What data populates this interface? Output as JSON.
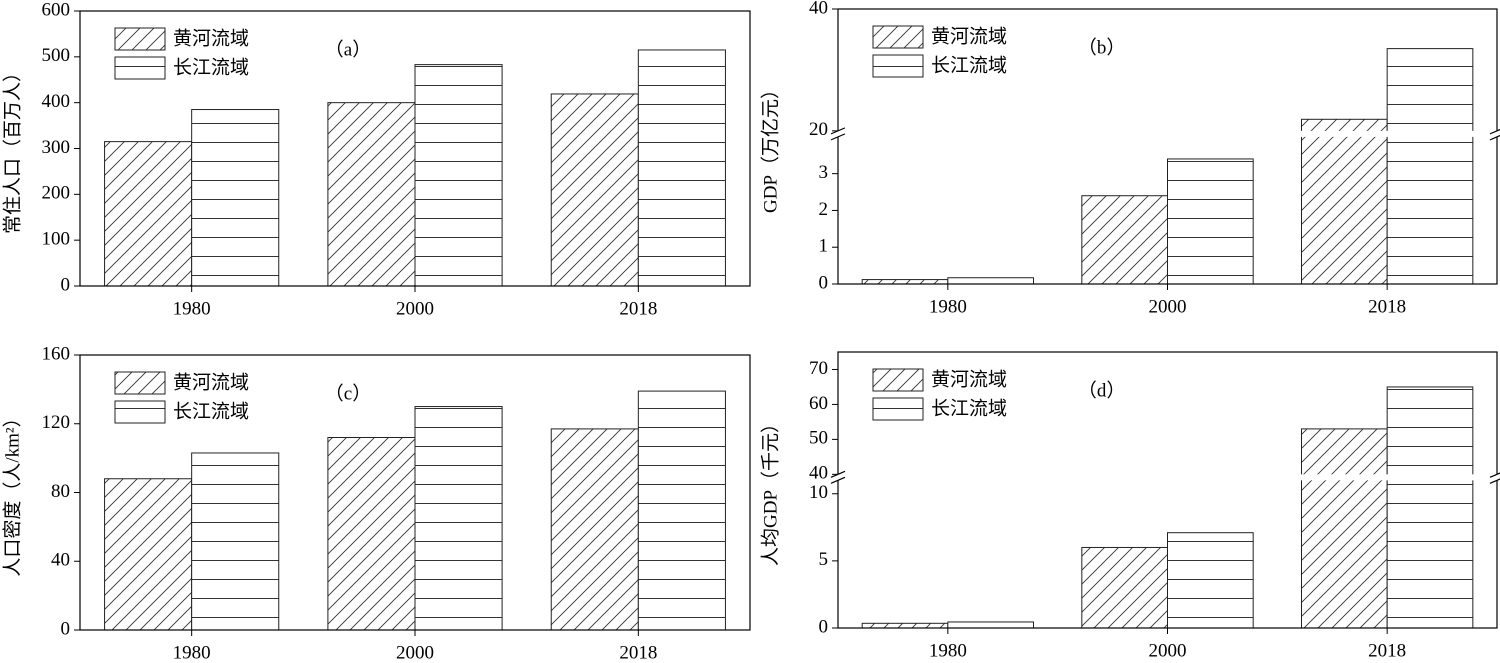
{
  "chart_data": [
    {
      "type": "bar",
      "annotation": "（a）",
      "y_label": "常住人口（百万人）",
      "categories": [
        "1980",
        "2000",
        "2018"
      ],
      "series": [
        {
          "name": "黄河流域",
          "color": "#ffffff",
          "hatch": "diagonal",
          "values": [
            315,
            400,
            419
          ]
        },
        {
          "name": "长江流域",
          "color": "#ffffff",
          "hatch": "horizontal",
          "values": [
            385,
            483,
            515
          ]
        }
      ],
      "ylim": [
        0,
        600
      ],
      "yticks": [
        0,
        100,
        200,
        300,
        400,
        500,
        600
      ]
    },
    {
      "type": "bar",
      "annotation": "（b）",
      "y_label": "GDP（万亿元）",
      "categories": [
        "1980",
        "2000",
        "2018"
      ],
      "series": [
        {
          "name": "黄河流域",
          "color": "#ffffff",
          "hatch": "diagonal",
          "values": [
            0.12,
            2.4,
            21.9
          ]
        },
        {
          "name": "长江流域",
          "color": "#ffffff",
          "hatch": "horizontal",
          "values": [
            0.17,
            3.4,
            33.5
          ]
        }
      ],
      "ylim": [
        0,
        40
      ],
      "ybreak": [
        4,
        20
      ],
      "yticks": [
        0,
        1,
        2,
        3,
        20,
        40
      ]
    },
    {
      "type": "bar",
      "annotation": "（c）",
      "y_label": "人口密度（人/km²）",
      "categories": [
        "1980",
        "2000",
        "2018"
      ],
      "series": [
        {
          "name": "黄河流域",
          "color": "#ffffff",
          "hatch": "diagonal",
          "values": [
            88,
            112,
            117
          ]
        },
        {
          "name": "长江流域",
          "color": "#ffffff",
          "hatch": "horizontal",
          "values": [
            103,
            130,
            139
          ]
        }
      ],
      "ylim": [
        0,
        160
      ],
      "yticks": [
        0,
        40,
        80,
        120,
        160
      ]
    },
    {
      "type": "bar",
      "annotation": "（d）",
      "y_label": "人均GDP（千元）",
      "categories": [
        "1980",
        "2000",
        "2018"
      ],
      "series": [
        {
          "name": "黄河流域",
          "color": "#ffffff",
          "hatch": "diagonal",
          "values": [
            0.35,
            6.0,
            53
          ]
        },
        {
          "name": "长江流域",
          "color": "#ffffff",
          "hatch": "horizontal",
          "values": [
            0.45,
            7.1,
            65
          ]
        }
      ],
      "ylim": [
        0,
        75
      ],
      "ybreak": [
        11,
        40
      ],
      "yticks": [
        0,
        5,
        10,
        40,
        50,
        60,
        70
      ]
    }
  ]
}
